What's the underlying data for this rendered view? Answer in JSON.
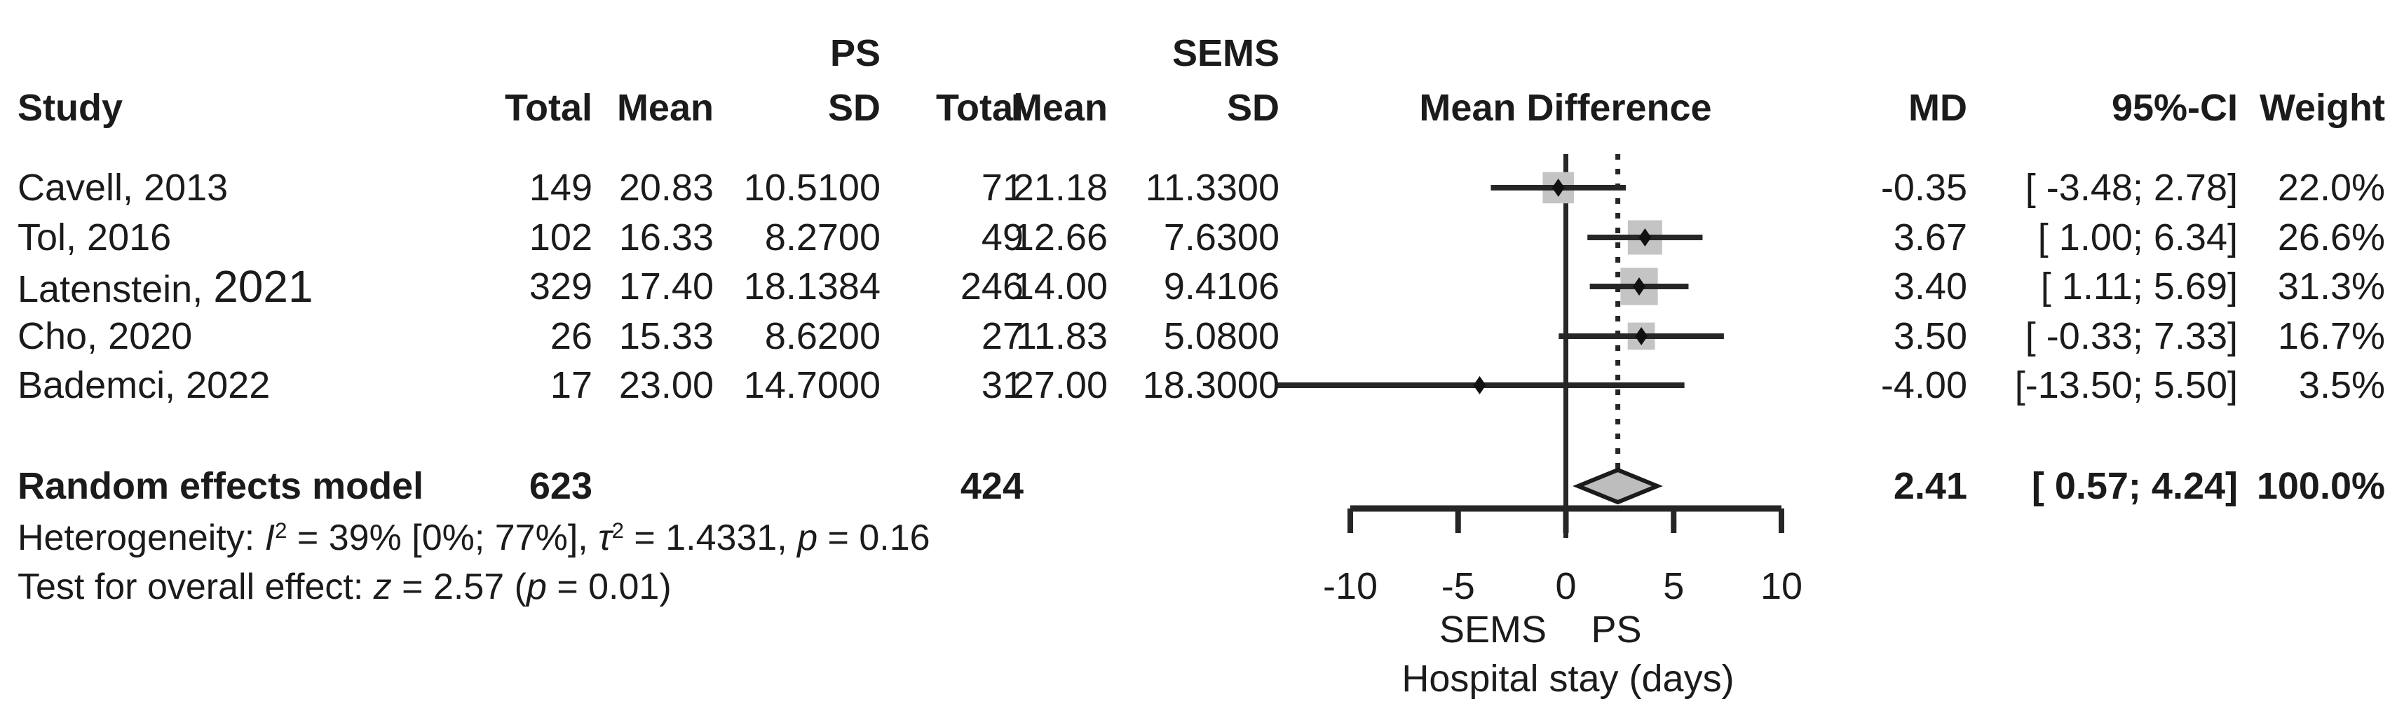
{
  "header": {
    "row1": {
      "ps_group": "PS",
      "sems_group": "SEMS"
    },
    "row2": {
      "study": "Study",
      "ps_total": "Total",
      "ps_mean": "Mean",
      "ps_sd": "SD",
      "sems_total": "Total",
      "sems_mean": "Mean",
      "sems_sd": "SD",
      "mean_difference": "Mean Difference",
      "md": "MD",
      "ci": "95%-CI",
      "weight": "Weight"
    }
  },
  "rows": [
    {
      "study": "Cavell, 2013",
      "total1": "149",
      "mean1": "20.83",
      "sd1": "10.5100",
      "total2": "71",
      "mean2": "21.18",
      "sd2": "11.3300",
      "md": "-0.35",
      "ci": "[ -3.48; 2.78]",
      "weight": "22.0%"
    },
    {
      "study": "Tol, 2016",
      "total1": "102",
      "mean1": "16.33",
      "sd1": "8.2700",
      "total2": "49",
      "mean2": "12.66",
      "sd2": "7.6300",
      "md": "3.67",
      "ci": "[ 1.00; 6.34]",
      "weight": "26.6%"
    },
    {
      "study": "Latenstein, ",
      "year_big": "2021",
      "total1": "329",
      "mean1": "17.40",
      "sd1": "18.1384",
      "total2": "246",
      "mean2": "14.00",
      "sd2": "9.4106",
      "md": "3.40",
      "ci": "[ 1.11; 5.69]",
      "weight": "31.3%"
    },
    {
      "study": "Cho, 2020",
      "total1": "26",
      "mean1": "15.33",
      "sd1": "8.6200",
      "total2": "27",
      "mean2": "11.83",
      "sd2": "5.0800",
      "md": "3.50",
      "ci": "[ -0.33; 7.33]",
      "weight": "16.7%"
    },
    {
      "study": "Bademci, 2022",
      "total1": "17",
      "mean1": "23.00",
      "sd1": "14.7000",
      "total2": "31",
      "mean2": "27.00",
      "sd2": "18.3000",
      "md": "-4.00",
      "ci": "[-13.50; 5.50]",
      "weight": "3.5%"
    }
  ],
  "summary": {
    "label": "Random effects model",
    "total1": "623",
    "total2": "424",
    "md": "2.41",
    "ci": "[ 0.57; 4.24]",
    "weight": "100.0%"
  },
  "heterogeneity": {
    "label": "Heterogeneity: ",
    "i_symbol": "I",
    "i_sup": "2",
    "seg1": " = 39% [0%; 77%], ",
    "tau_symbol": "τ",
    "tau_sup": "2",
    "seg2": " = 1.4331, ",
    "p_symbol": "p",
    "seg3": " = 0.16"
  },
  "overall_test": {
    "label": "Test for overall effect: ",
    "z_symbol": "z",
    "seg1": " = 2.57 (",
    "p_symbol": "p",
    "seg2": " = 0.01)"
  },
  "colors": {
    "text": "#1b1b1b",
    "line": "#262626",
    "square_fill": "#c4c4c4",
    "diamond_fill": "#bdbdbd",
    "diamond_stroke": "#1b1b1b"
  },
  "chart_data": {
    "type": "forest",
    "title": "",
    "xlabel": "Hospital stay (days)",
    "favours_left": "SEMS",
    "favours_right": "PS",
    "xlim": [
      -10,
      10
    ],
    "x_ticks": [
      -10,
      -5,
      0,
      5,
      10
    ],
    "zero_line": 0,
    "pooled_dotted_line": 2.41,
    "grid": false,
    "studies": [
      {
        "name": "Cavell, 2013",
        "ps_total": 149,
        "ps_mean": 20.83,
        "ps_sd": 10.51,
        "sems_total": 71,
        "sems_mean": 21.18,
        "sems_sd": 11.33,
        "md": -0.35,
        "ci_low": -3.48,
        "ci_high": 2.78,
        "weight_pct": 22.0
      },
      {
        "name": "Tol, 2016",
        "ps_total": 102,
        "ps_mean": 16.33,
        "ps_sd": 8.27,
        "sems_total": 49,
        "sems_mean": 12.66,
        "sems_sd": 7.63,
        "md": 3.67,
        "ci_low": 1.0,
        "ci_high": 6.34,
        "weight_pct": 26.6
      },
      {
        "name": "Latenstein, 2021",
        "ps_total": 329,
        "ps_mean": 17.4,
        "ps_sd": 18.1384,
        "sems_total": 246,
        "sems_mean": 14.0,
        "sems_sd": 9.4106,
        "md": 3.4,
        "ci_low": 1.11,
        "ci_high": 5.69,
        "weight_pct": 31.3
      },
      {
        "name": "Cho, 2020",
        "ps_total": 26,
        "ps_mean": 15.33,
        "ps_sd": 8.62,
        "sems_total": 27,
        "sems_mean": 11.83,
        "sems_sd": 5.08,
        "md": 3.5,
        "ci_low": -0.33,
        "ci_high": 7.33,
        "weight_pct": 16.7
      },
      {
        "name": "Bademci, 2022",
        "ps_total": 17,
        "ps_mean": 23.0,
        "ps_sd": 14.7,
        "sems_total": 31,
        "sems_mean": 27.0,
        "sems_sd": 18.3,
        "md": -4.0,
        "ci_low": -13.5,
        "ci_high": 5.5,
        "weight_pct": 3.5
      }
    ],
    "pooled": {
      "model": "Random effects model",
      "ps_total": 623,
      "sems_total": 424,
      "md": 2.41,
      "ci_low": 0.57,
      "ci_high": 4.24,
      "weight_pct": 100.0
    },
    "heterogeneity": {
      "I2": "39%",
      "I2_ci": "[0%; 77%]",
      "tau2": 1.4331,
      "p": 0.16
    },
    "overall_effect": {
      "z": 2.57,
      "p": 0.01
    }
  }
}
